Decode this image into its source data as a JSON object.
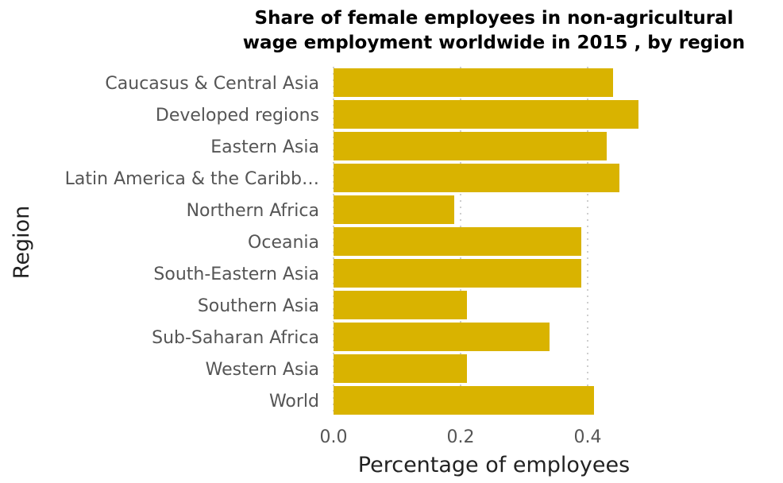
{
  "chart_data": {
    "type": "bar",
    "orientation": "horizontal",
    "title_lines": [
      "Share of female employees in non-agricultural",
      "wage employment worldwide in 2015 , by region"
    ],
    "xlabel": "Percentage of employees",
    "ylabel": "Region",
    "categories": [
      "Caucasus & Central Asia",
      "Developed regions",
      "Eastern Asia",
      "Latin America & the Caribb…",
      "Northern Africa",
      "Oceania",
      "South-Eastern Asia",
      "Southern Asia",
      "Sub-Saharan Africa",
      "Western Asia",
      "World"
    ],
    "values": [
      0.44,
      0.48,
      0.43,
      0.45,
      0.19,
      0.39,
      0.39,
      0.21,
      0.34,
      0.21,
      0.41
    ],
    "xlim": [
      0,
      0.5
    ],
    "xticks": [
      0.0,
      0.2,
      0.4
    ],
    "xtick_labels": [
      "0.0",
      "0.2",
      "0.4"
    ],
    "grid": "vertical dotted",
    "bar_color": "#d9b300"
  }
}
